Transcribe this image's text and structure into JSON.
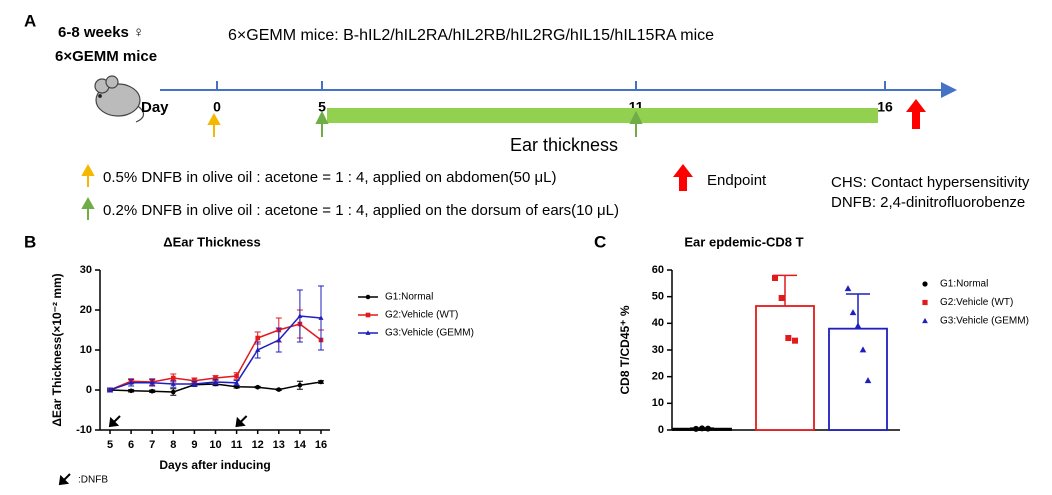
{
  "panel_a": {
    "label": "A",
    "age": "6-8 weeks ♀",
    "mice": "6×GEMM mice",
    "header": "6×GEMM mice: B-hIL2/hIL2RA/hIL2RB/hIL2RG/hIL15/hIL15RA mice",
    "day_label": "Day",
    "days": [
      "0",
      "5",
      "11",
      "16"
    ],
    "bar_label": "Ear thickness",
    "legend": [
      "0.5% DNFB in olive oil : acetone = 1 : 4, applied on abdomen(50 μL)",
      "0.2% DNFB in olive oil : acetone = 1 : 4, applied on the dorsum of ears(10 μL)"
    ],
    "endpoint": "Endpoint",
    "abbreviations": [
      "CHS: Contact hypersensitivity",
      "DNFB: 2,4-dinitrofluorobenze"
    ]
  },
  "chart_data": [
    {
      "type": "line",
      "panel": "B",
      "title": "ΔEar Thickness",
      "xlabel": "Days after inducing",
      "ylabel": "ΔEar Thickness(×10⁻² mm)",
      "annotation": ":DNFB",
      "categories": [
        "5",
        "6",
        "7",
        "8",
        "9",
        "10",
        "11",
        "12",
        "13",
        "14",
        "16"
      ],
      "ylim": [
        -10,
        30
      ],
      "yticks": [
        -10,
        0,
        10,
        20,
        30
      ],
      "series": [
        {
          "name": "G1:Normal",
          "color": "#000000",
          "values": [
            0,
            -0.2,
            -0.3,
            -0.5,
            1.3,
            1.5,
            0.8,
            0.7,
            0.1,
            1.2,
            2
          ],
          "errors": [
            0.2,
            0.3,
            0.3,
            0.8,
            0.4,
            0.4,
            0.3,
            0.2,
            0.2,
            1,
            0.3
          ]
        },
        {
          "name": "G2:Vehicle (WT)",
          "color": "#e31a1c",
          "values": [
            0,
            2.2,
            2,
            3,
            2.3,
            3,
            3.5,
            13,
            15,
            16.5,
            12.5
          ],
          "errors": [
            0.5,
            0.6,
            0.8,
            1,
            0.7,
            0.6,
            0.8,
            1.5,
            3,
            3.5,
            2.5
          ]
        },
        {
          "name": "G3:Vehicle (GEMM)",
          "color": "#1f1fbf",
          "values": [
            0,
            1.8,
            1.8,
            1.5,
            1.5,
            2,
            1.8,
            10,
            12.5,
            18.5,
            18
          ],
          "errors": [
            0.5,
            0.8,
            0.8,
            0.8,
            0.6,
            0.6,
            0.6,
            2,
            3,
            6.5,
            8
          ]
        }
      ]
    },
    {
      "type": "bar",
      "panel": "C",
      "title": "Ear epdemic-CD8 T",
      "ylabel": "CD8 T/CD45⁺ %",
      "ylim": [
        0,
        60
      ],
      "yticks": [
        0,
        10,
        20,
        30,
        40,
        50,
        60
      ],
      "series": [
        {
          "name": "G1:Normal",
          "color": "#000000",
          "marker": "circle",
          "value": 0.5,
          "error": 0.2,
          "points": [
            0.4,
            0.6,
            0.5
          ]
        },
        {
          "name": "G2:Vehicle (WT)",
          "color": "#e31a1c",
          "marker": "square",
          "value": 46.5,
          "error": 11.5,
          "points": [
            57,
            49.5,
            34.5,
            33.5
          ]
        },
        {
          "name": "G3:Vehicle (GEMM)",
          "color": "#1f1fbf",
          "marker": "triangle",
          "value": 38,
          "error": 13,
          "points": [
            53,
            44,
            39,
            30,
            18.5
          ]
        }
      ]
    }
  ]
}
